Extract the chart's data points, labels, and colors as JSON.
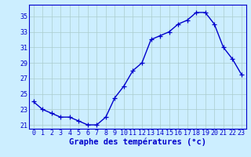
{
  "hours": [
    0,
    1,
    2,
    3,
    4,
    5,
    6,
    7,
    8,
    9,
    10,
    11,
    12,
    13,
    14,
    15,
    16,
    17,
    18,
    19,
    20,
    21,
    22,
    23
  ],
  "temps": [
    24.0,
    23.0,
    22.5,
    22.0,
    22.0,
    21.5,
    21.0,
    21.0,
    22.0,
    24.5,
    26.0,
    28.0,
    29.0,
    32.0,
    32.5,
    33.0,
    34.0,
    34.5,
    35.5,
    35.5,
    34.0,
    31.0,
    29.5,
    27.5
  ],
  "line_color": "#0000cc",
  "marker": "+",
  "marker_size": 4,
  "marker_linewidth": 0.9,
  "bg_color": "#cceeff",
  "grid_color": "#aacccc",
  "axis_color": "#0000cc",
  "xlabel": "Graphe des températures (°c)",
  "ylim": [
    20.5,
    36.5
  ],
  "xlim": [
    -0.5,
    23.5
  ],
  "yticks": [
    21,
    23,
    25,
    27,
    29,
    31,
    33,
    35
  ],
  "xticks": [
    0,
    1,
    2,
    3,
    4,
    5,
    6,
    7,
    8,
    9,
    10,
    11,
    12,
    13,
    14,
    15,
    16,
    17,
    18,
    19,
    20,
    21,
    22,
    23
  ],
  "font_size_xlabel": 7.5,
  "font_size_ticks": 6.0,
  "line_width": 1.0
}
